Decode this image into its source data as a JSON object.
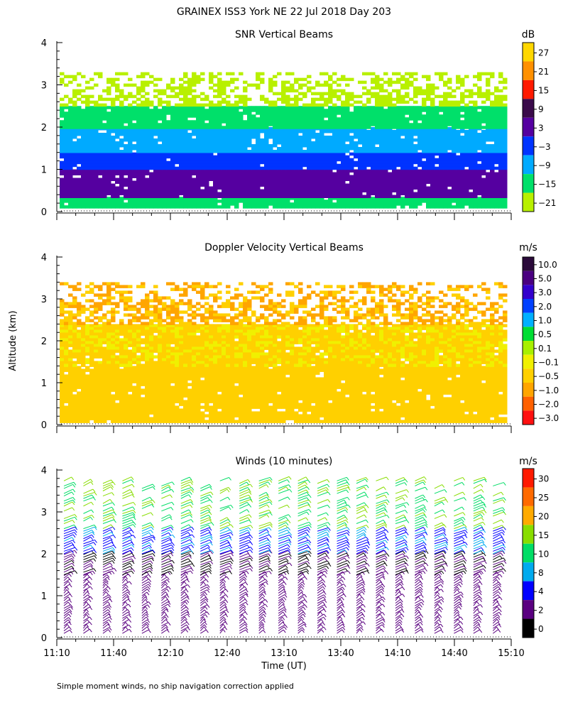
{
  "figure": {
    "title": "GRAINEX ISS3 York NE  22 Jul 2018 Day 203",
    "ylabel": "Altitude (km)",
    "xlabel": "Time (UT)",
    "footnote": "Simple moment winds, no ship navigation correction applied",
    "time_ticks": [
      "11:10",
      "11:40",
      "12:10",
      "12:40",
      "13:10",
      "13:40",
      "14:10",
      "14:40",
      "15:10"
    ],
    "alt_ticks": [
      "0",
      "1",
      "2",
      "3",
      "4"
    ]
  },
  "chart_data": [
    {
      "type": "heatmap",
      "title": "SNR Vertical Beams",
      "unit": "dB",
      "x_range": [
        "11:10",
        "15:10"
      ],
      "ylim": [
        0,
        4
      ],
      "colorbar_labels": [
        "27",
        "21",
        "15",
        "9",
        "3",
        "−3",
        "−9",
        "−15",
        "−21"
      ],
      "colors": [
        "#ffd700",
        "#ff9000",
        "#ff1a00",
        "#3a0a4a",
        "#5500a0",
        "#0033ff",
        "#00aaff",
        "#00e06a",
        "#b8f000"
      ],
      "layers": [
        {
          "alt_range": [
            0.1,
            0.35
          ],
          "value_range": [
            -15,
            -9
          ]
        },
        {
          "alt_range": [
            0.35,
            1.0
          ],
          "value_range": [
            3,
            9
          ]
        },
        {
          "alt_range": [
            1.0,
            1.4
          ],
          "value_range": [
            -3,
            3
          ]
        },
        {
          "alt_range": [
            1.4,
            2.0
          ],
          "value_range": [
            -9,
            -3
          ]
        },
        {
          "alt_range": [
            2.0,
            2.5
          ],
          "value_range": [
            -15,
            -9
          ]
        },
        {
          "alt_range": [
            2.5,
            3.3
          ],
          "value_range": [
            -21,
            -15
          ]
        }
      ]
    },
    {
      "type": "heatmap",
      "title": "Doppler Velocity Vertical Beams",
      "unit": "m/s",
      "x_range": [
        "11:10",
        "15:10"
      ],
      "ylim": [
        0,
        4
      ],
      "colorbar_labels": [
        "10.0",
        "5.0",
        "3.0",
        "2.0",
        "1.0",
        "0.5",
        "0.1",
        "−0.1",
        "−0.5",
        "−1.0",
        "−2.0",
        "−3.0"
      ],
      "colors": [
        "#2a0a3a",
        "#4a0080",
        "#3300cc",
        "#0040ff",
        "#00b0ff",
        "#00dd33",
        "#a8f000",
        "#f0f000",
        "#ffd000",
        "#ffa500",
        "#ff6000",
        "#ff1010"
      ],
      "layers": [
        {
          "alt_range": [
            0.1,
            1.4
          ],
          "value_range": [
            -0.5,
            -0.1
          ]
        },
        {
          "alt_range": [
            1.4,
            2.4
          ],
          "value_range": [
            -0.5,
            0.1
          ]
        },
        {
          "alt_range": [
            2.4,
            3.4
          ],
          "value_range": [
            -1.0,
            -0.1
          ]
        }
      ]
    },
    {
      "type": "wind_barbs",
      "title": "Winds (10 minutes)",
      "unit": "m/s",
      "x_range": [
        "11:10",
        "15:10"
      ],
      "ylim": [
        0,
        4
      ],
      "interval_minutes": 10,
      "colorbar_labels": [
        "30",
        "25",
        "20",
        "15",
        "10",
        "8",
        "4",
        "2",
        "0"
      ],
      "colors": [
        "#ff1a00",
        "#ff6a00",
        "#ffaa00",
        "#88dd00",
        "#00dd66",
        "#00aaee",
        "#0000ff",
        "#5a0080",
        "#000000"
      ],
      "speed_by_altitude": [
        {
          "alt_range": [
            0.1,
            1.5
          ],
          "speed_range": [
            2,
            4
          ]
        },
        {
          "alt_range": [
            1.5,
            2.0
          ],
          "speed_range": [
            0,
            4
          ]
        },
        {
          "alt_range": [
            2.0,
            2.6
          ],
          "speed_range": [
            4,
            10
          ]
        },
        {
          "alt_range": [
            2.6,
            3.8
          ],
          "speed_range": [
            10,
            20
          ]
        }
      ]
    }
  ]
}
